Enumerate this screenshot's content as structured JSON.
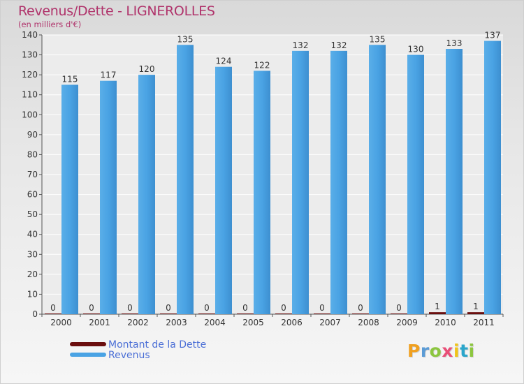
{
  "header": {
    "title": "Revenus/Dette - LIGNEROLLES",
    "subtitle": "(en milliers d'€)"
  },
  "legend": {
    "items": [
      {
        "label": "Montant de la Dette",
        "color": "#6b0e0e"
      },
      {
        "label": "Revenus",
        "color": "#4aa3e4"
      }
    ]
  },
  "logo": {
    "letters": [
      "P",
      "r",
      "o",
      "x",
      "i",
      "t",
      "i"
    ],
    "colors": [
      "#f0a020",
      "#5b9bd5",
      "#8cc63f",
      "#e94e77",
      "#f0c419",
      "#2ba6cb",
      "#8cc63f"
    ]
  },
  "chart_data": {
    "type": "bar",
    "title": "Revenus/Dette - LIGNEROLLES",
    "subtitle": "(en milliers d'€)",
    "categories": [
      "2000",
      "2001",
      "2002",
      "2003",
      "2004",
      "2005",
      "2006",
      "2007",
      "2008",
      "2009",
      "2010",
      "2011"
    ],
    "series": [
      {
        "name": "Montant de la Dette",
        "color": "#6b0e0e",
        "values": [
          0,
          0,
          0,
          0,
          0,
          0,
          0,
          0,
          0,
          0,
          1,
          1
        ]
      },
      {
        "name": "Revenus",
        "color": "#4aa3e4",
        "values": [
          115,
          117,
          120,
          135,
          124,
          122,
          132,
          132,
          135,
          130,
          133,
          137
        ]
      }
    ],
    "ylim": [
      0,
      140
    ],
    "yticks": [
      0,
      10,
      20,
      30,
      40,
      50,
      60,
      70,
      80,
      90,
      100,
      110,
      120,
      130,
      140
    ],
    "grid": true,
    "legend_position": "bottom-left"
  }
}
